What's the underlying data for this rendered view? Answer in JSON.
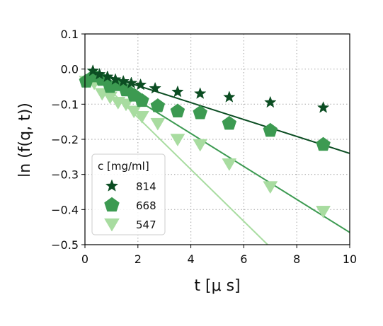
{
  "chart_data": {
    "type": "scatter",
    "xlabel": "t [μ s]",
    "ylabel": "ln (f(q, t))",
    "xlim": [
      0,
      10
    ],
    "ylim": [
      -0.5,
      0.1
    ],
    "xticks": [
      0,
      2,
      4,
      6,
      8,
      10
    ],
    "yticks": [
      0.1,
      0.0,
      -0.1,
      -0.2,
      -0.3,
      -0.4,
      -0.5
    ],
    "xtick_labels": [
      "0",
      "2",
      "4",
      "6",
      "8",
      "10"
    ],
    "ytick_labels": [
      "0.1",
      "0.0",
      "−0.1",
      "−0.2",
      "−0.3",
      "−0.4",
      "−0.5"
    ],
    "grid": true,
    "legend": {
      "title": "c [mg/ml]",
      "placement": "lower-left"
    },
    "series": [
      {
        "name": "814",
        "marker": "star",
        "color": "#0b4d22",
        "x": [
          0.3,
          0.55,
          0.85,
          1.15,
          1.45,
          1.75,
          2.1,
          2.65,
          3.5,
          4.35,
          5.45,
          7.0,
          9.0
        ],
        "y": [
          -0.005,
          -0.015,
          -0.022,
          -0.03,
          -0.035,
          -0.04,
          -0.045,
          -0.055,
          -0.065,
          -0.07,
          -0.08,
          -0.095,
          -0.11
        ],
        "fit": {
          "x": [
            0.2,
            10
          ],
          "y": [
            -0.004,
            -0.24
          ]
        }
      },
      {
        "name": "668",
        "marker": "pentagon",
        "color": "#3c9a51",
        "x": [
          0.05,
          0.35,
          0.65,
          0.95,
          1.25,
          1.55,
          1.85,
          2.15,
          2.75,
          3.5,
          4.35,
          5.45,
          7.0,
          9.0
        ],
        "y": [
          -0.035,
          -0.02,
          -0.03,
          -0.05,
          -0.045,
          -0.06,
          -0.075,
          -0.09,
          -0.105,
          -0.12,
          -0.125,
          -0.155,
          -0.175,
          -0.215
        ],
        "fit": {
          "x": [
            0.2,
            10
          ],
          "y": [
            -0.005,
            -0.465
          ]
        }
      },
      {
        "name": "547",
        "marker": "triangle-down",
        "color": "#a8dca0",
        "x": [
          0.05,
          0.35,
          0.65,
          0.95,
          1.25,
          1.55,
          1.85,
          2.15,
          2.75,
          3.5,
          4.35,
          5.45,
          7.0,
          9.0
        ],
        "y": [
          -0.035,
          -0.04,
          -0.07,
          -0.08,
          -0.095,
          -0.1,
          -0.12,
          -0.135,
          -0.155,
          -0.2,
          -0.215,
          -0.27,
          -0.335,
          -0.405
        ],
        "fit": {
          "x": [
            0.2,
            6.9
          ],
          "y": [
            -0.005,
            -0.5
          ]
        }
      }
    ]
  }
}
